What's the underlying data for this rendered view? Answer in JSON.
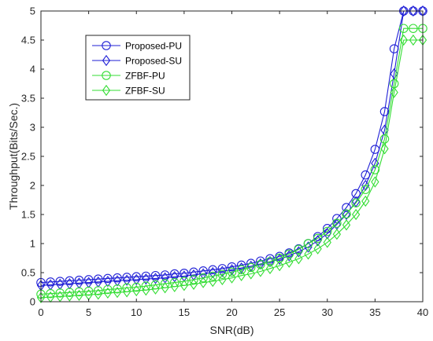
{
  "chart_data": {
    "type": "line",
    "title": "",
    "xlabel": "SNR(dB)",
    "ylabel": "Throughput(Bits/Sec.)",
    "xlim": [
      0,
      40
    ],
    "ylim": [
      0,
      5
    ],
    "xticks": [
      0,
      5,
      10,
      15,
      20,
      25,
      30,
      35,
      40
    ],
    "yticks": [
      0,
      0.5,
      1,
      1.5,
      2,
      2.5,
      3,
      3.5,
      4,
      4.5,
      5
    ],
    "xtick_labels": [
      "0",
      "5",
      "10",
      "15",
      "20",
      "25",
      "30",
      "35",
      "40"
    ],
    "ytick_labels": [
      "0",
      "0.5",
      "1",
      "1.5",
      "2",
      "2.5",
      "3",
      "3.5",
      "4",
      "4.5",
      "5"
    ],
    "grid": false,
    "legend_position": "top-left",
    "x": [
      0,
      1,
      2,
      3,
      4,
      5,
      6,
      7,
      8,
      9,
      10,
      11,
      12,
      13,
      14,
      15,
      16,
      17,
      18,
      19,
      20,
      21,
      22,
      23,
      24,
      25,
      26,
      27,
      28,
      29,
      30,
      31,
      32,
      33,
      34,
      35,
      36,
      37,
      38,
      39,
      40
    ],
    "series": [
      {
        "name": "Proposed-PU",
        "marker": "circle",
        "color": "#1f1fd6",
        "values": [
          0.33,
          0.34,
          0.35,
          0.36,
          0.37,
          0.38,
          0.39,
          0.4,
          0.41,
          0.42,
          0.43,
          0.44,
          0.45,
          0.46,
          0.48,
          0.49,
          0.51,
          0.53,
          0.55,
          0.57,
          0.6,
          0.63,
          0.66,
          0.7,
          0.74,
          0.78,
          0.84,
          0.91,
          1.0,
          1.12,
          1.26,
          1.43,
          1.62,
          1.86,
          2.18,
          2.62,
          3.27,
          4.35,
          5.0,
          5.0,
          5.0
        ]
      },
      {
        "name": "Proposed-SU",
        "marker": "diamond",
        "color": "#1f1fd6",
        "values": [
          0.28,
          0.29,
          0.3,
          0.31,
          0.32,
          0.33,
          0.34,
          0.35,
          0.36,
          0.37,
          0.38,
          0.39,
          0.4,
          0.41,
          0.43,
          0.44,
          0.46,
          0.48,
          0.5,
          0.52,
          0.55,
          0.58,
          0.61,
          0.65,
          0.69,
          0.73,
          0.79,
          0.86,
          0.94,
          1.05,
          1.17,
          1.33,
          1.5,
          1.72,
          2.0,
          2.38,
          2.95,
          3.92,
          5.0,
          5.0,
          5.0
        ]
      },
      {
        "name": "ZFBF-PU",
        "marker": "circle",
        "color": "#33dd33",
        "values": [
          0.13,
          0.14,
          0.15,
          0.16,
          0.17,
          0.18,
          0.19,
          0.21,
          0.22,
          0.24,
          0.25,
          0.27,
          0.29,
          0.31,
          0.33,
          0.35,
          0.38,
          0.41,
          0.44,
          0.47,
          0.51,
          0.55,
          0.59,
          0.64,
          0.69,
          0.75,
          0.82,
          0.9,
          1.0,
          1.09,
          1.21,
          1.35,
          1.51,
          1.7,
          1.93,
          2.27,
          2.8,
          3.75,
          4.7,
          4.7,
          4.7
        ]
      },
      {
        "name": "ZFBF-SU",
        "marker": "diamond",
        "color": "#33dd33",
        "values": [
          0.07,
          0.08,
          0.09,
          0.1,
          0.11,
          0.12,
          0.13,
          0.15,
          0.16,
          0.17,
          0.19,
          0.2,
          0.22,
          0.24,
          0.26,
          0.28,
          0.3,
          0.33,
          0.35,
          0.38,
          0.41,
          0.45,
          0.48,
          0.52,
          0.57,
          0.62,
          0.68,
          0.74,
          0.82,
          0.91,
          1.02,
          1.16,
          1.32,
          1.5,
          1.73,
          2.06,
          2.63,
          3.6,
          4.5,
          4.5,
          4.5
        ]
      }
    ]
  }
}
